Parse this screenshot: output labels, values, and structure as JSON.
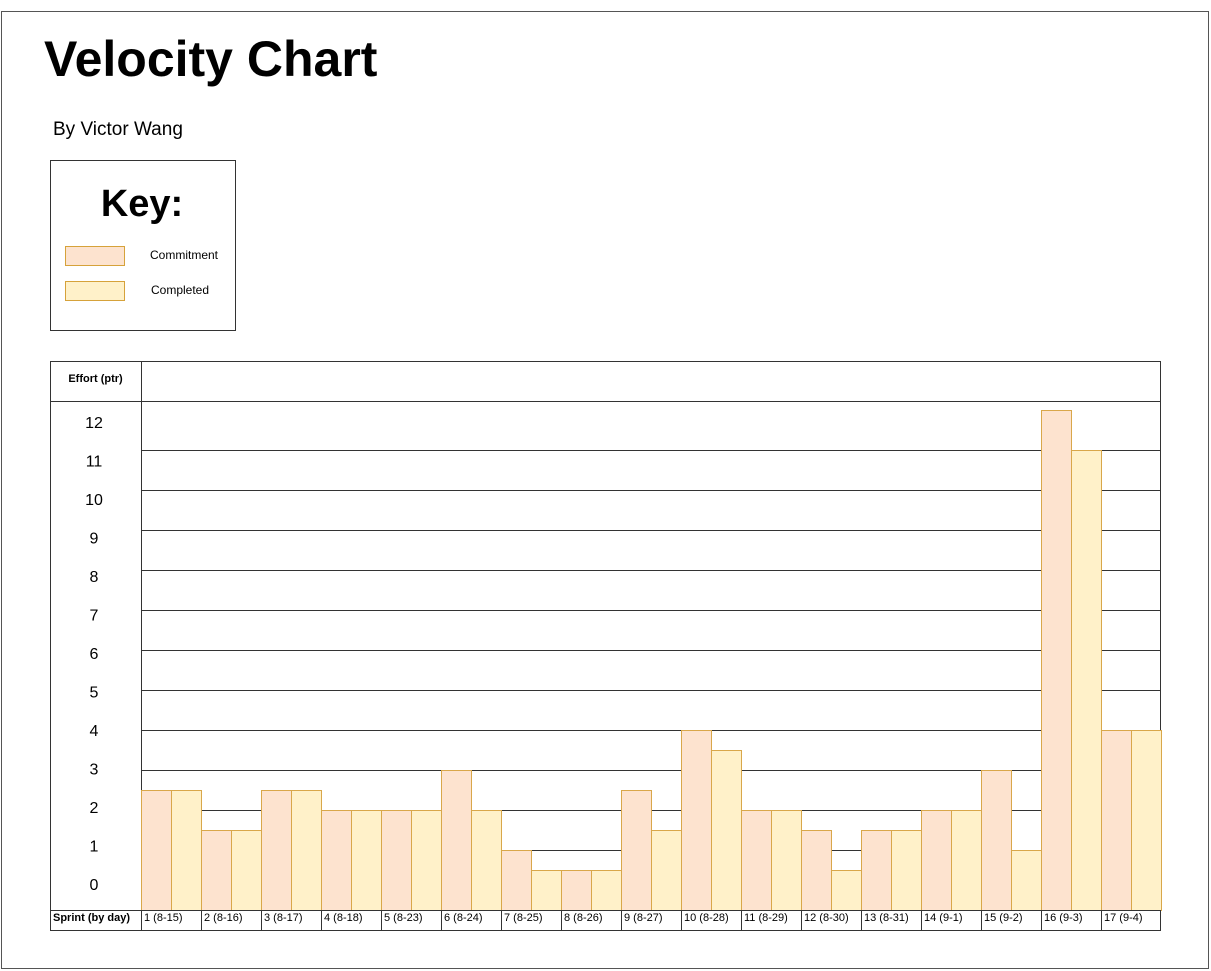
{
  "title": "Velocity Chart",
  "byline": "By Victor Wang",
  "key": {
    "title": "Key:",
    "items": [
      {
        "label": "Commitment",
        "color": "#fde3cf"
      },
      {
        "label": "Completed",
        "color": "#fff1c9"
      }
    ]
  },
  "colors": {
    "commitment_fill": "#fde3cf",
    "completed_fill": "#fff1c9",
    "bar_stroke": "#d9a74a",
    "grid": "#333333"
  },
  "chart_data": {
    "type": "bar",
    "ylabel": "Effort (ptr)",
    "xlabel": "Sprint (by day)",
    "yticks": [
      "12",
      "11",
      "10",
      "9",
      "8",
      "7",
      "6",
      "5",
      "4",
      "3",
      "2",
      "1",
      "0"
    ],
    "categories": [
      "1 (8-15)",
      "2 (8-16)",
      "3 (8-17)",
      "4 (8-18)",
      "5 (8-23)",
      "6 (8-24)",
      "7 (8-25)",
      "8 (8-26)",
      "9 (8-27)",
      "10 (8-28)",
      "11 (8-29)",
      "12 (8-30)",
      "13 (8-31)",
      "14 (9-1)",
      "15 (9-2)",
      "16 (9-3)",
      "17 (9-4)"
    ],
    "series": [
      {
        "name": "Commitment",
        "values": [
          3,
          2,
          3,
          2.5,
          2.5,
          3.5,
          1.5,
          1,
          3,
          4.5,
          2.5,
          2,
          2,
          2.5,
          3.5,
          12.5,
          4.5
        ]
      },
      {
        "name": "Completed",
        "values": [
          3,
          2,
          3,
          2.5,
          2.5,
          2.5,
          1,
          1,
          2,
          4,
          2.5,
          1,
          2,
          2.5,
          1.5,
          11.5,
          4.5
        ]
      }
    ],
    "grid": true,
    "legend": "top-left"
  }
}
